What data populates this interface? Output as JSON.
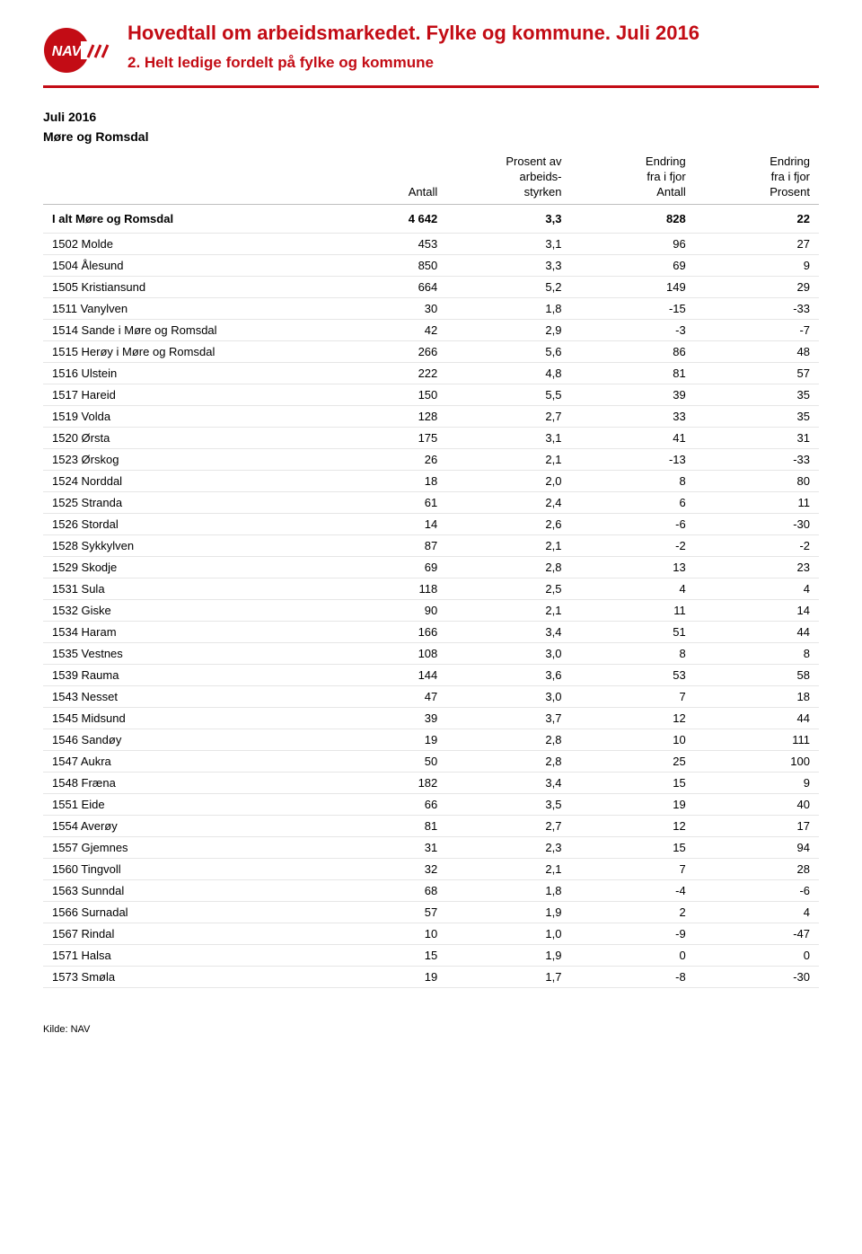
{
  "header": {
    "title": "Hovedtall om arbeidsmarkedet. Fylke og kommune. Juli 2016",
    "subtitle": "2. Helt ledige fordelt på fylke og kommune",
    "accent_color": "#c30c15",
    "logo_text": "NAV"
  },
  "meta": {
    "month": "Juli 2016",
    "region": "Møre og Romsdal"
  },
  "table": {
    "columns": [
      {
        "key": "name",
        "label": ""
      },
      {
        "key": "antall",
        "label": "Antall"
      },
      {
        "key": "prosent",
        "label": "Prosent av\narbeids-\nstyrken"
      },
      {
        "key": "d_antall",
        "label": "Endring\nfra i fjor\nAntall"
      },
      {
        "key": "d_prosent",
        "label": "Endring\nfra i fjor\nProsent"
      }
    ],
    "col_widths": [
      "36%",
      "16%",
      "16%",
      "16%",
      "16%"
    ],
    "col_align": [
      "left",
      "right",
      "right",
      "right",
      "right"
    ],
    "header_fontsize": 13,
    "body_fontsize": 13,
    "row_border_color": "#e6e6e6",
    "header_border_color": "#bfbfbf",
    "background_color": "#ffffff",
    "total_row": {
      "name": "I alt Møre og Romsdal",
      "antall": "4 642",
      "prosent": "3,3",
      "d_antall": "828",
      "d_prosent": "22"
    },
    "rows": [
      {
        "name": "1502 Molde",
        "antall": "453",
        "prosent": "3,1",
        "d_antall": "96",
        "d_prosent": "27"
      },
      {
        "name": "1504 Ålesund",
        "antall": "850",
        "prosent": "3,3",
        "d_antall": "69",
        "d_prosent": "9"
      },
      {
        "name": "1505 Kristiansund",
        "antall": "664",
        "prosent": "5,2",
        "d_antall": "149",
        "d_prosent": "29"
      },
      {
        "name": "1511 Vanylven",
        "antall": "30",
        "prosent": "1,8",
        "d_antall": "-15",
        "d_prosent": "-33"
      },
      {
        "name": "1514 Sande i Møre og Romsdal",
        "antall": "42",
        "prosent": "2,9",
        "d_antall": "-3",
        "d_prosent": "-7"
      },
      {
        "name": "1515 Herøy i Møre og Romsdal",
        "antall": "266",
        "prosent": "5,6",
        "d_antall": "86",
        "d_prosent": "48"
      },
      {
        "name": "1516 Ulstein",
        "antall": "222",
        "prosent": "4,8",
        "d_antall": "81",
        "d_prosent": "57"
      },
      {
        "name": "1517 Hareid",
        "antall": "150",
        "prosent": "5,5",
        "d_antall": "39",
        "d_prosent": "35"
      },
      {
        "name": "1519 Volda",
        "antall": "128",
        "prosent": "2,7",
        "d_antall": "33",
        "d_prosent": "35"
      },
      {
        "name": "1520 Ørsta",
        "antall": "175",
        "prosent": "3,1",
        "d_antall": "41",
        "d_prosent": "31"
      },
      {
        "name": "1523 Ørskog",
        "antall": "26",
        "prosent": "2,1",
        "d_antall": "-13",
        "d_prosent": "-33"
      },
      {
        "name": "1524 Norddal",
        "antall": "18",
        "prosent": "2,0",
        "d_antall": "8",
        "d_prosent": "80"
      },
      {
        "name": "1525 Stranda",
        "antall": "61",
        "prosent": "2,4",
        "d_antall": "6",
        "d_prosent": "11"
      },
      {
        "name": "1526 Stordal",
        "antall": "14",
        "prosent": "2,6",
        "d_antall": "-6",
        "d_prosent": "-30"
      },
      {
        "name": "1528 Sykkylven",
        "antall": "87",
        "prosent": "2,1",
        "d_antall": "-2",
        "d_prosent": "-2"
      },
      {
        "name": "1529 Skodje",
        "antall": "69",
        "prosent": "2,8",
        "d_antall": "13",
        "d_prosent": "23"
      },
      {
        "name": "1531 Sula",
        "antall": "118",
        "prosent": "2,5",
        "d_antall": "4",
        "d_prosent": "4"
      },
      {
        "name": "1532 Giske",
        "antall": "90",
        "prosent": "2,1",
        "d_antall": "11",
        "d_prosent": "14"
      },
      {
        "name": "1534 Haram",
        "antall": "166",
        "prosent": "3,4",
        "d_antall": "51",
        "d_prosent": "44"
      },
      {
        "name": "1535 Vestnes",
        "antall": "108",
        "prosent": "3,0",
        "d_antall": "8",
        "d_prosent": "8"
      },
      {
        "name": "1539 Rauma",
        "antall": "144",
        "prosent": "3,6",
        "d_antall": "53",
        "d_prosent": "58"
      },
      {
        "name": "1543 Nesset",
        "antall": "47",
        "prosent": "3,0",
        "d_antall": "7",
        "d_prosent": "18"
      },
      {
        "name": "1545 Midsund",
        "antall": "39",
        "prosent": "3,7",
        "d_antall": "12",
        "d_prosent": "44"
      },
      {
        "name": "1546 Sandøy",
        "antall": "19",
        "prosent": "2,8",
        "d_antall": "10",
        "d_prosent": "111"
      },
      {
        "name": "1547 Aukra",
        "antall": "50",
        "prosent": "2,8",
        "d_antall": "25",
        "d_prosent": "100"
      },
      {
        "name": "1548 Fræna",
        "antall": "182",
        "prosent": "3,4",
        "d_antall": "15",
        "d_prosent": "9"
      },
      {
        "name": "1551 Eide",
        "antall": "66",
        "prosent": "3,5",
        "d_antall": "19",
        "d_prosent": "40"
      },
      {
        "name": "1554 Averøy",
        "antall": "81",
        "prosent": "2,7",
        "d_antall": "12",
        "d_prosent": "17"
      },
      {
        "name": "1557 Gjemnes",
        "antall": "31",
        "prosent": "2,3",
        "d_antall": "15",
        "d_prosent": "94"
      },
      {
        "name": "1560 Tingvoll",
        "antall": "32",
        "prosent": "2,1",
        "d_antall": "7",
        "d_prosent": "28"
      },
      {
        "name": "1563 Sunndal",
        "antall": "68",
        "prosent": "1,8",
        "d_antall": "-4",
        "d_prosent": "-6"
      },
      {
        "name": "1566 Surnadal",
        "antall": "57",
        "prosent": "1,9",
        "d_antall": "2",
        "d_prosent": "4"
      },
      {
        "name": "1567 Rindal",
        "antall": "10",
        "prosent": "1,0",
        "d_antall": "-9",
        "d_prosent": "-47"
      },
      {
        "name": "1571 Halsa",
        "antall": "15",
        "prosent": "1,9",
        "d_antall": "0",
        "d_prosent": "0"
      },
      {
        "name": "1573 Smøla",
        "antall": "19",
        "prosent": "1,7",
        "d_antall": "-8",
        "d_prosent": "-30"
      }
    ]
  },
  "footer": {
    "source": "Kilde: NAV"
  }
}
